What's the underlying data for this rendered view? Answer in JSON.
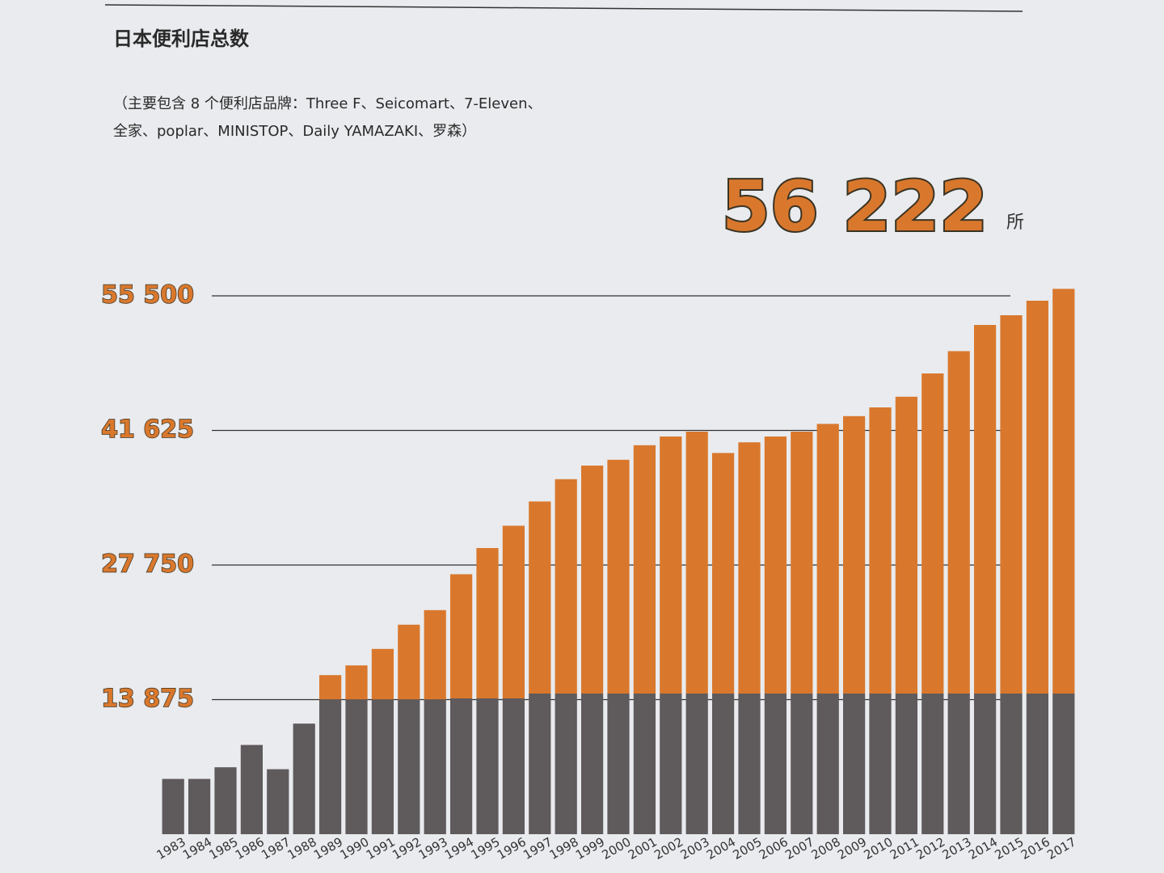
{
  "chart_data": {
    "type": "stacked_bar",
    "title": "日本便利店总数",
    "subtitle": [
      "（主要包含 8 个便利店品牌：Three F、Seicomart、7-Eleven、",
      "全家、poplar、MINISTOP、Daily YAMAZAKI、罗森）"
    ],
    "annotation": {
      "text": "56 222",
      "unit": "所"
    },
    "categories": [
      "1983",
      "1984",
      "1985",
      "1986",
      "1987",
      "1988",
      "1989",
      "1990",
      "1991",
      "1992",
      "1993",
      "1994",
      "1995",
      "1996",
      "1997",
      "1998",
      "1999",
      "2000",
      "2001",
      "2002",
      "2003",
      "2004",
      "2005",
      "2006",
      "2007",
      "2008",
      "2009",
      "2010",
      "2011",
      "2012",
      "2013",
      "2014",
      "2015",
      "2016",
      "2017"
    ],
    "series": [
      {
        "color": "#5f5a5c",
        "values": [
          5700,
          5700,
          6900,
          9200,
          6700,
          11400,
          13900,
          13900,
          13900,
          13900,
          13900,
          14000,
          14000,
          14000,
          14500,
          14500,
          14500,
          14500,
          14500,
          14500,
          14500,
          14500,
          14500,
          14500,
          14500,
          14500,
          14500,
          14500,
          14500,
          14500,
          14500,
          14500,
          14500,
          14500,
          14500
        ]
      },
      {
        "color": "#d9782d",
        "values": [
          0,
          0,
          0,
          0,
          0,
          0,
          2500,
          3500,
          5200,
          7700,
          9200,
          12800,
          15500,
          17800,
          19800,
          22100,
          23500,
          24100,
          25600,
          26500,
          27000,
          24800,
          25900,
          26500,
          27000,
          27800,
          28600,
          29500,
          30600,
          33000,
          35300,
          38000,
          39000,
          40500,
          41722
        ]
      }
    ],
    "ylim": [
      0,
      58000
    ],
    "yticks": [
      {
        "value": 13875,
        "label": "13 875"
      },
      {
        "value": 27750,
        "label": "27 750"
      },
      {
        "value": 41625,
        "label": "41 625"
      },
      {
        "value": 55500,
        "label": "55 500"
      }
    ],
    "grid": true
  }
}
